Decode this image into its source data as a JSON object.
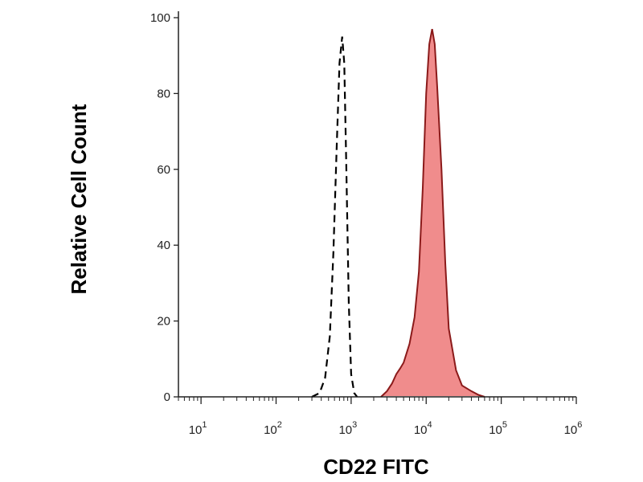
{
  "chart_data": {
    "type": "area",
    "xlabel": "CD22 FITC",
    "ylabel": "Relative Cell Count",
    "xscale": "log",
    "xlim": [
      5,
      1000000
    ],
    "ylim": [
      0,
      100
    ],
    "x_ticks": [
      {
        "value": 10,
        "base": "10",
        "exp": "1"
      },
      {
        "value": 100,
        "base": "10",
        "exp": "2"
      },
      {
        "value": 1000,
        "base": "10",
        "exp": "3"
      },
      {
        "value": 10000,
        "base": "10",
        "exp": "4"
      },
      {
        "value": 100000,
        "base": "10",
        "exp": "5"
      },
      {
        "value": 1000000,
        "base": "10",
        "exp": "6"
      }
    ],
    "y_ticks": [
      {
        "value": 0,
        "label": "0"
      },
      {
        "value": 20,
        "label": "20"
      },
      {
        "value": 40,
        "label": "40"
      },
      {
        "value": 60,
        "label": "60"
      },
      {
        "value": 80,
        "label": "80"
      },
      {
        "value": 100,
        "label": "100"
      }
    ],
    "grid": false,
    "series": [
      {
        "style": "dashed",
        "color": "#000000",
        "x": [
          300,
          380,
          450,
          520,
          580,
          640,
          700,
          760,
          810,
          860,
          930,
          1000,
          1100,
          1200
        ],
        "y": [
          0,
          1,
          5,
          16,
          38,
          65,
          88,
          95,
          88,
          62,
          25,
          6,
          1,
          0
        ]
      },
      {
        "style": "filled",
        "color": "#f08c8c",
        "edge_color": "#8b1a1a",
        "x": [
          2500,
          3000,
          3500,
          4000,
          4500,
          5000,
          6000,
          7000,
          8000,
          9000,
          10000,
          11000,
          12000,
          13000,
          14000,
          16000,
          18000,
          20000,
          25000,
          30000,
          40000,
          50000,
          60000
        ],
        "y": [
          0,
          1.5,
          3.5,
          6,
          7.5,
          9,
          14,
          21,
          33,
          55,
          80,
          93,
          97,
          93,
          82,
          60,
          35,
          18,
          7,
          3,
          1.5,
          0.5,
          0
        ]
      }
    ]
  }
}
